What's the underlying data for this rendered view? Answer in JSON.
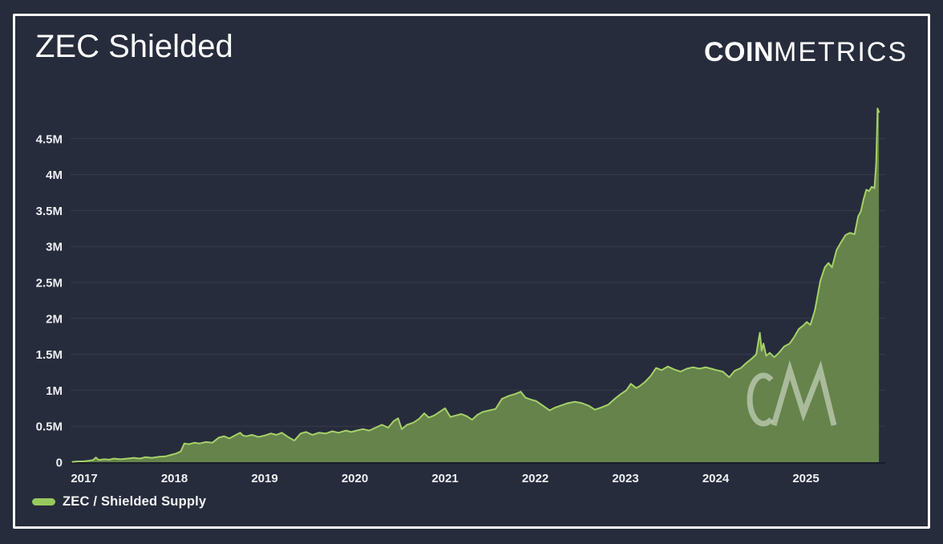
{
  "header": {
    "title": "ZEC Shielded",
    "logo_bold": "COIN",
    "logo_light": "METRICS"
  },
  "legend": {
    "label": "ZEC / Shielded Supply"
  },
  "watermark": {
    "text": "CM"
  },
  "colors": {
    "background": "#272c3c",
    "frame": "#fafafa",
    "grid": "#363c4e",
    "baseline": "#191d29",
    "axis_text": "#eef0f4",
    "area_fill": "#65834b",
    "area_line": "#a6d168",
    "legend_swatch": "#98c95e",
    "watermark": "rgba(255,255,255,0.45)"
  },
  "chart_data": {
    "type": "area",
    "title": "ZEC Shielded",
    "xlabel": "",
    "ylabel": "",
    "units": "ZEC shielded supply, millions",
    "grid": "horizontal",
    "legend_position": "bottom-left",
    "xlim": [
      2016.85,
      2025.9
    ],
    "ylim": [
      0,
      5
    ],
    "x_ticks": [
      {
        "value": 2017,
        "label": "2017"
      },
      {
        "value": 2018,
        "label": "2018"
      },
      {
        "value": 2019,
        "label": "2019"
      },
      {
        "value": 2020,
        "label": "2020"
      },
      {
        "value": 2021,
        "label": "2021"
      },
      {
        "value": 2022,
        "label": "2022"
      },
      {
        "value": 2023,
        "label": "2023"
      },
      {
        "value": 2024,
        "label": "2024"
      },
      {
        "value": 2025,
        "label": "2025"
      }
    ],
    "y_ticks": [
      {
        "value": 0,
        "label": "0"
      },
      {
        "value": 0.5,
        "label": "0.5M"
      },
      {
        "value": 1,
        "label": "1M"
      },
      {
        "value": 1.5,
        "label": "1.5M"
      },
      {
        "value": 2,
        "label": "2M"
      },
      {
        "value": 2.5,
        "label": "2.5M"
      },
      {
        "value": 3,
        "label": "3M"
      },
      {
        "value": 3.5,
        "label": "3.5M"
      },
      {
        "value": 4,
        "label": "4M"
      },
      {
        "value": 4.5,
        "label": "4.5M"
      }
    ],
    "series": [
      {
        "name": "ZEC / Shielded Supply",
        "x": [
          2016.87,
          2016.92,
          2017.0,
          2017.05,
          2017.1,
          2017.13,
          2017.16,
          2017.22,
          2017.28,
          2017.33,
          2017.4,
          2017.48,
          2017.55,
          2017.62,
          2017.68,
          2017.75,
          2017.83,
          2017.9,
          2017.96,
          2018.02,
          2018.07,
          2018.11,
          2018.16,
          2018.22,
          2018.28,
          2018.35,
          2018.42,
          2018.49,
          2018.55,
          2018.61,
          2018.67,
          2018.73,
          2018.76,
          2018.8,
          2018.86,
          2018.93,
          2019.0,
          2019.07,
          2019.13,
          2019.19,
          2019.26,
          2019.33,
          2019.4,
          2019.46,
          2019.53,
          2019.6,
          2019.68,
          2019.75,
          2019.82,
          2019.9,
          2019.96,
          2020.02,
          2020.09,
          2020.16,
          2020.23,
          2020.3,
          2020.37,
          2020.43,
          2020.48,
          2020.52,
          2020.58,
          2020.65,
          2020.71,
          2020.77,
          2020.82,
          2020.88,
          2020.94,
          2021.0,
          2021.06,
          2021.12,
          2021.18,
          2021.24,
          2021.3,
          2021.36,
          2021.42,
          2021.49,
          2021.56,
          2021.63,
          2021.7,
          2021.78,
          2021.84,
          2021.89,
          2021.95,
          2022.01,
          2022.08,
          2022.16,
          2022.22,
          2022.29,
          2022.36,
          2022.44,
          2022.52,
          2022.6,
          2022.66,
          2022.73,
          2022.81,
          2022.88,
          2022.95,
          2023.01,
          2023.06,
          2023.12,
          2023.16,
          2023.22,
          2023.28,
          2023.34,
          2023.4,
          2023.47,
          2023.54,
          2023.61,
          2023.68,
          2023.75,
          2023.82,
          2023.89,
          2023.95,
          2024.01,
          2024.08,
          2024.15,
          2024.21,
          2024.28,
          2024.34,
          2024.4,
          2024.45,
          2024.49,
          2024.51,
          2024.53,
          2024.56,
          2024.6,
          2024.65,
          2024.7,
          2024.76,
          2024.82,
          2024.87,
          2024.92,
          2024.97,
          2025.01,
          2025.05,
          2025.1,
          2025.16,
          2025.21,
          2025.25,
          2025.29,
          2025.34,
          2025.39,
          2025.44,
          2025.49,
          2025.54,
          2025.58,
          2025.61,
          2025.64,
          2025.67,
          2025.7,
          2025.73,
          2025.76,
          2025.78,
          2025.795,
          2025.81
        ],
        "values": [
          0.005,
          0.01,
          0.012,
          0.02,
          0.03,
          0.065,
          0.03,
          0.04,
          0.035,
          0.05,
          0.04,
          0.05,
          0.06,
          0.05,
          0.07,
          0.06,
          0.075,
          0.08,
          0.1,
          0.12,
          0.15,
          0.26,
          0.25,
          0.27,
          0.26,
          0.28,
          0.27,
          0.34,
          0.36,
          0.33,
          0.37,
          0.41,
          0.37,
          0.36,
          0.38,
          0.35,
          0.37,
          0.4,
          0.38,
          0.41,
          0.35,
          0.3,
          0.4,
          0.42,
          0.38,
          0.41,
          0.4,
          0.43,
          0.41,
          0.44,
          0.42,
          0.44,
          0.46,
          0.44,
          0.48,
          0.52,
          0.48,
          0.57,
          0.61,
          0.46,
          0.52,
          0.55,
          0.6,
          0.68,
          0.62,
          0.65,
          0.7,
          0.75,
          0.63,
          0.65,
          0.67,
          0.64,
          0.59,
          0.66,
          0.7,
          0.72,
          0.74,
          0.88,
          0.92,
          0.95,
          0.98,
          0.9,
          0.87,
          0.85,
          0.79,
          0.72,
          0.76,
          0.79,
          0.82,
          0.84,
          0.82,
          0.78,
          0.73,
          0.76,
          0.8,
          0.88,
          0.95,
          1.0,
          1.09,
          1.03,
          1.06,
          1.12,
          1.2,
          1.31,
          1.28,
          1.33,
          1.29,
          1.26,
          1.3,
          1.32,
          1.3,
          1.32,
          1.3,
          1.28,
          1.26,
          1.18,
          1.27,
          1.31,
          1.38,
          1.44,
          1.5,
          1.8,
          1.55,
          1.65,
          1.48,
          1.52,
          1.46,
          1.52,
          1.61,
          1.65,
          1.74,
          1.85,
          1.9,
          1.95,
          1.91,
          2.11,
          2.52,
          2.71,
          2.77,
          2.71,
          2.95,
          3.06,
          3.16,
          3.19,
          3.17,
          3.42,
          3.49,
          3.66,
          3.79,
          3.77,
          3.83,
          3.81,
          4.16,
          4.92,
          4.87
        ]
      }
    ]
  }
}
